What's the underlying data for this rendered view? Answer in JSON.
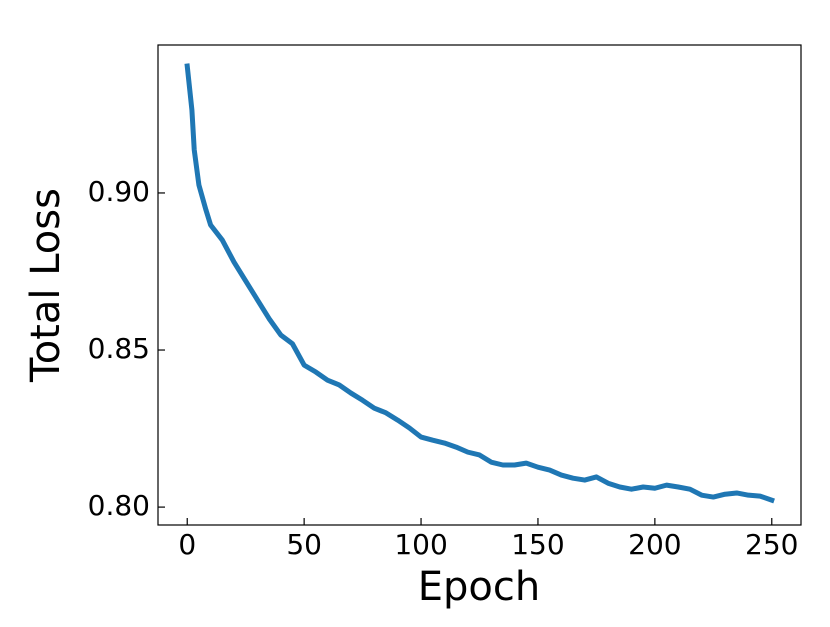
{
  "chart_data": {
    "type": "line",
    "xlabel": "Epoch",
    "ylabel": "Total Loss",
    "x": [
      0,
      2,
      3,
      5,
      8,
      10,
      15,
      20,
      25,
      30,
      35,
      40,
      45,
      50,
      55,
      60,
      65,
      70,
      75,
      80,
      85,
      90,
      95,
      100,
      105,
      110,
      115,
      120,
      125,
      130,
      135,
      140,
      145,
      150,
      155,
      160,
      165,
      170,
      175,
      180,
      185,
      190,
      195,
      200,
      205,
      210,
      215,
      220,
      225,
      230,
      235,
      240,
      245,
      250
    ],
    "series": [
      {
        "color": "#1f77b4",
        "values": [
          0.9404,
          0.9264,
          0.9137,
          0.9025,
          0.8946,
          0.8898,
          0.885,
          0.878,
          0.872,
          0.866,
          0.86,
          0.8548,
          0.852,
          0.8452,
          0.843,
          0.8404,
          0.8389,
          0.8363,
          0.834,
          0.8315,
          0.83,
          0.8277,
          0.8252,
          0.8223,
          0.8213,
          0.8204,
          0.8191,
          0.8175,
          0.8166,
          0.8143,
          0.8134,
          0.8134,
          0.814,
          0.8127,
          0.8118,
          0.8102,
          0.8092,
          0.8086,
          0.8096,
          0.8076,
          0.8064,
          0.8057,
          0.8064,
          0.806,
          0.807,
          0.8064,
          0.8057,
          0.8038,
          0.8032,
          0.8041,
          0.8045,
          0.8038,
          0.8035,
          0.8022
        ]
      }
    ],
    "xlim": [
      -12.5,
      262.5
    ],
    "xticks": [
      0,
      50,
      100,
      150,
      200,
      250
    ],
    "ylim": [
      0.7943,
      0.9471
    ],
    "yticks": [
      {
        "value": 0.8,
        "label": "0.80"
      },
      0.85,
      {
        "value": 0.9,
        "label": "0.90"
      }
    ]
  }
}
